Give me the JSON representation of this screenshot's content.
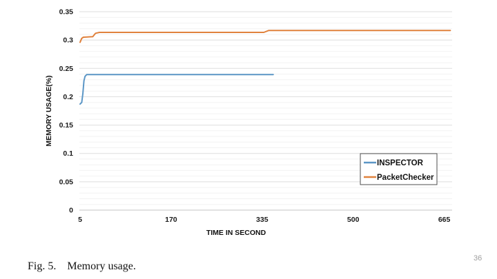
{
  "page": {
    "number": "36"
  },
  "caption": {
    "label": "Fig. 5.",
    "text": "Memory usage."
  },
  "chart_data": {
    "type": "line",
    "title": "",
    "xlabel": "TIME IN SECOND",
    "ylabel": "MEMORY USAGE(%)",
    "xlim": [
      5,
      678
    ],
    "ylim": [
      0,
      0.35
    ],
    "x_ticks": [
      {
        "v": 5,
        "label": "5"
      },
      {
        "v": 170,
        "label": "170"
      },
      {
        "v": 335,
        "label": "335"
      },
      {
        "v": 500,
        "label": "500"
      },
      {
        "v": 665,
        "label": "665"
      }
    ],
    "y_ticks": [
      {
        "v": 0,
        "label": "0"
      },
      {
        "v": 0.05,
        "label": "0.05"
      },
      {
        "v": 0.1,
        "label": "0.1"
      },
      {
        "v": 0.15,
        "label": "0.15"
      },
      {
        "v": 0.2,
        "label": "0.2"
      },
      {
        "v": 0.25,
        "label": "0.25"
      },
      {
        "v": 0.3,
        "label": "0.3"
      },
      {
        "v": 0.35,
        "label": "0.35"
      }
    ],
    "y_minor_step": 0.01,
    "grid": true,
    "legend": {
      "position": "inside-right",
      "entries": [
        "INSPECTOR",
        "PacketChecker"
      ]
    },
    "colors": {
      "minor_grid": "#f2f2f2",
      "major_grid": "#dedede",
      "baseline": "#c6c6c6",
      "tick_text": "#1a1a1a",
      "legend_border": "#4d4d4d",
      "inspector_blue": "#5b96c6",
      "packetchecker_orange": "#e0813c"
    },
    "series": [
      {
        "name": "INSPECTOR",
        "color": "#5b96c6",
        "points": [
          [
            5,
            0.187
          ],
          [
            8,
            0.19
          ],
          [
            10,
            0.205
          ],
          [
            12,
            0.228
          ],
          [
            14,
            0.236
          ],
          [
            17,
            0.239
          ],
          [
            40,
            0.239
          ],
          [
            355,
            0.239
          ]
        ]
      },
      {
        "name": "PacketChecker",
        "color": "#e0813c",
        "points": [
          [
            5,
            0.296
          ],
          [
            8,
            0.303
          ],
          [
            11,
            0.305
          ],
          [
            28,
            0.306
          ],
          [
            33,
            0.312
          ],
          [
            40,
            0.3135
          ],
          [
            120,
            0.3135
          ],
          [
            338,
            0.3135
          ],
          [
            347,
            0.317
          ],
          [
            676,
            0.317
          ]
        ]
      }
    ]
  }
}
